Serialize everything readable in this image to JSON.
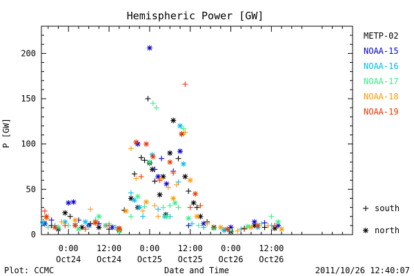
{
  "chart_data": {
    "type": "scatter",
    "title": "Hemispheric Power [GW]",
    "xlabel": "Date and Time",
    "ylabel": "P [GW]",
    "ylim": [
      0,
      230
    ],
    "xlim_hours": [
      -8,
      84
    ],
    "y_ticks": [
      0,
      50,
      100,
      150,
      200
    ],
    "x_ticks": [
      {
        "pos_hours": 0,
        "line1": "0:00",
        "line2": "Oct24"
      },
      {
        "pos_hours": 12,
        "line1": "12:00",
        "line2": "Oct24"
      },
      {
        "pos_hours": 24,
        "line1": "0:00",
        "line2": "Oct25"
      },
      {
        "pos_hours": 36,
        "line1": "12:00",
        "line2": "Oct25"
      },
      {
        "pos_hours": 48,
        "line1": "0:00",
        "line2": "Oct26"
      },
      {
        "pos_hours": 60,
        "line1": "12:00",
        "line2": "Oct26"
      }
    ],
    "series": [
      {
        "name": "METP-02",
        "color": "#000000",
        "points": [
          [
            -7.5,
            14,
            "+"
          ],
          [
            -5,
            10,
            "+"
          ],
          [
            -3,
            6,
            "*"
          ],
          [
            -1,
            24,
            "*"
          ],
          [
            0.5,
            20,
            "+"
          ],
          [
            2,
            10,
            "+"
          ],
          [
            4,
            8,
            "*"
          ],
          [
            6.5,
            12,
            "+"
          ],
          [
            9,
            8,
            "*"
          ],
          [
            12,
            6,
            "+"
          ],
          [
            15,
            5,
            "*"
          ],
          [
            16.5,
            27,
            "+"
          ],
          [
            18.5,
            40,
            "*"
          ],
          [
            19.5,
            67,
            "+"
          ],
          [
            20.5,
            30,
            "*"
          ],
          [
            21.5,
            85,
            "+"
          ],
          [
            22.5,
            82,
            "+"
          ],
          [
            23.5,
            150,
            "+"
          ],
          [
            24,
            79,
            "*"
          ],
          [
            24.8,
            72,
            "*"
          ],
          [
            25.5,
            59,
            "+"
          ],
          [
            27,
            44,
            "*"
          ],
          [
            28,
            64,
            "*"
          ],
          [
            28.8,
            22,
            "*"
          ],
          [
            30,
            90,
            "*"
          ],
          [
            31,
            126,
            "*"
          ],
          [
            32.5,
            84,
            "+"
          ],
          [
            33.5,
            111,
            "*"
          ],
          [
            34.5,
            64,
            "*"
          ],
          [
            35.5,
            48,
            "+"
          ],
          [
            37,
            35,
            "*"
          ],
          [
            38,
            30,
            "+"
          ],
          [
            39,
            20,
            "*"
          ],
          [
            41,
            14,
            "+"
          ],
          [
            43,
            8,
            "*"
          ],
          [
            46,
            5,
            "+"
          ],
          [
            48,
            3,
            "*"
          ],
          [
            52,
            7,
            "+"
          ],
          [
            55,
            10,
            "*"
          ],
          [
            58,
            8,
            "+"
          ],
          [
            61,
            7,
            "*"
          ]
        ]
      },
      {
        "name": "NOAA-15",
        "color": "#0000cc",
        "points": [
          [
            -7,
            12,
            "*"
          ],
          [
            -5,
            16,
            "+"
          ],
          [
            0,
            35,
            "*"
          ],
          [
            1.5,
            36,
            "*"
          ],
          [
            3,
            16,
            "+"
          ],
          [
            6,
            10,
            "*"
          ],
          [
            9,
            12,
            "+"
          ],
          [
            13,
            8,
            "*"
          ],
          [
            20.5,
            100,
            "*"
          ],
          [
            24,
            206,
            "*"
          ],
          [
            25.5,
            72,
            "+"
          ],
          [
            26.5,
            64,
            "*"
          ],
          [
            27.5,
            84,
            "+"
          ],
          [
            29,
            56,
            "*"
          ],
          [
            31,
            70,
            "+"
          ],
          [
            33,
            92,
            "*"
          ],
          [
            35.5,
            10,
            "+"
          ],
          [
            40,
            12,
            "*"
          ],
          [
            48,
            8,
            "*"
          ],
          [
            55,
            14,
            "*"
          ],
          [
            58,
            13,
            "+"
          ],
          [
            62,
            10,
            "*"
          ]
        ]
      },
      {
        "name": "NOAA-16",
        "color": "#00bbee",
        "points": [
          [
            -7.5,
            13,
            "*"
          ],
          [
            -4,
            10,
            "+"
          ],
          [
            -1,
            14,
            "*"
          ],
          [
            2,
            12,
            "+"
          ],
          [
            5,
            14,
            "*"
          ],
          [
            8,
            16,
            "+"
          ],
          [
            11,
            10,
            "*"
          ],
          [
            14,
            8,
            "+"
          ],
          [
            18.5,
            46,
            "+"
          ],
          [
            19.5,
            38,
            "*"
          ],
          [
            21,
            30,
            "*"
          ],
          [
            22,
            20,
            "+"
          ],
          [
            24.8,
            88,
            "*"
          ],
          [
            26.5,
            28,
            "+"
          ],
          [
            28.5,
            20,
            "*"
          ],
          [
            30,
            20,
            "+"
          ],
          [
            32.5,
            58,
            "+"
          ],
          [
            33,
            120,
            "*"
          ],
          [
            34,
            78,
            "*"
          ],
          [
            36.5,
            12,
            "+"
          ],
          [
            40,
            8,
            "+"
          ],
          [
            46,
            5,
            "*"
          ],
          [
            51,
            6,
            "+"
          ],
          [
            56,
            8,
            "*"
          ],
          [
            60,
            10,
            "+"
          ]
        ]
      },
      {
        "name": "NOAA-17",
        "color": "#33ee88",
        "points": [
          [
            -6,
            8,
            "+"
          ],
          [
            -3,
            8,
            "*"
          ],
          [
            0,
            10,
            "+"
          ],
          [
            3,
            6,
            "*"
          ],
          [
            6,
            8,
            "+"
          ],
          [
            9,
            20,
            "*"
          ],
          [
            12,
            12,
            "+"
          ],
          [
            15,
            4,
            "*"
          ],
          [
            18.5,
            20,
            "+"
          ],
          [
            20.5,
            42,
            "*"
          ],
          [
            22.5,
            31,
            "+"
          ],
          [
            24,
            80,
            "*"
          ],
          [
            25,
            145,
            "+"
          ],
          [
            26,
            140,
            "+"
          ],
          [
            28,
            30,
            "+"
          ],
          [
            29,
            20,
            "*"
          ],
          [
            30,
            32,
            "+"
          ],
          [
            31.5,
            35,
            "*"
          ],
          [
            32.5,
            30,
            "+"
          ],
          [
            34,
            117,
            "+"
          ],
          [
            35.5,
            18,
            "*"
          ],
          [
            38.5,
            10,
            "+"
          ],
          [
            43,
            7,
            "*"
          ],
          [
            48,
            4,
            "+"
          ],
          [
            53,
            9,
            "*"
          ],
          [
            57,
            12,
            "+"
          ],
          [
            60,
            20,
            "+"
          ],
          [
            62,
            14,
            "*"
          ]
        ]
      },
      {
        "name": "NOAA-18",
        "color": "#ff9900",
        "points": [
          [
            -6.5,
            18,
            "*"
          ],
          [
            -2,
            14,
            "+"
          ],
          [
            2,
            16,
            "*"
          ],
          [
            6.5,
            28,
            "+"
          ],
          [
            8,
            14,
            "*"
          ],
          [
            11,
            10,
            "+"
          ],
          [
            15,
            6,
            "*"
          ],
          [
            17,
            26,
            "*"
          ],
          [
            18.5,
            95,
            "+"
          ],
          [
            20,
            62,
            "+"
          ],
          [
            22,
            26,
            "+"
          ],
          [
            23,
            36,
            "*"
          ],
          [
            25.5,
            32,
            "+"
          ],
          [
            26.5,
            20,
            "+"
          ],
          [
            27.5,
            62,
            "+"
          ],
          [
            29.5,
            52,
            "+"
          ],
          [
            31,
            40,
            "*"
          ],
          [
            32,
            55,
            "+"
          ],
          [
            34.5,
            113,
            "+"
          ],
          [
            36,
            60,
            "*"
          ],
          [
            38,
            20,
            "*"
          ],
          [
            41,
            12,
            "+"
          ],
          [
            45,
            8,
            "*"
          ],
          [
            50,
            4,
            "+"
          ],
          [
            54,
            8,
            "*"
          ],
          [
            59,
            10,
            "+"
          ],
          [
            63,
            6,
            "*"
          ]
        ]
      },
      {
        "name": "NOAA-19",
        "color": "#ee3300",
        "points": [
          [
            -7,
            26,
            "+"
          ],
          [
            -6.5,
            20,
            "*"
          ],
          [
            -4,
            8,
            "*"
          ],
          [
            -1,
            10,
            "+"
          ],
          [
            2,
            10,
            "*"
          ],
          [
            5,
            6,
            "+"
          ],
          [
            8,
            13,
            "*"
          ],
          [
            12,
            10,
            "+"
          ],
          [
            15,
            7,
            "*"
          ],
          [
            20,
            102,
            "*"
          ],
          [
            21.5,
            64,
            "+"
          ],
          [
            23,
            100,
            "*"
          ],
          [
            25,
            86,
            "*"
          ],
          [
            27,
            60,
            "+"
          ],
          [
            30,
            80,
            "*"
          ],
          [
            31,
            68,
            "+"
          ],
          [
            33.5,
            111,
            "*"
          ],
          [
            34.5,
            166,
            "+"
          ],
          [
            36,
            30,
            "+"
          ],
          [
            37.5,
            45,
            "*"
          ],
          [
            39,
            32,
            "+"
          ],
          [
            43,
            8,
            "+"
          ],
          [
            47,
            6,
            "*"
          ],
          [
            52,
            6,
            "+"
          ],
          [
            56,
            10,
            "*"
          ],
          [
            61,
            10,
            "+"
          ]
        ]
      }
    ],
    "legend": [
      "METP-02",
      "NOAA-15",
      "NOAA-16",
      "NOAA-17",
      "NOAA-18",
      "NOAA-19"
    ],
    "marker_key": [
      {
        "symbol": "+",
        "label": "south"
      },
      {
        "symbol": "*",
        "label": "north"
      }
    ]
  },
  "footer": {
    "left": "Plot: CCMC",
    "right": "2011/10/26 12:40:07"
  }
}
